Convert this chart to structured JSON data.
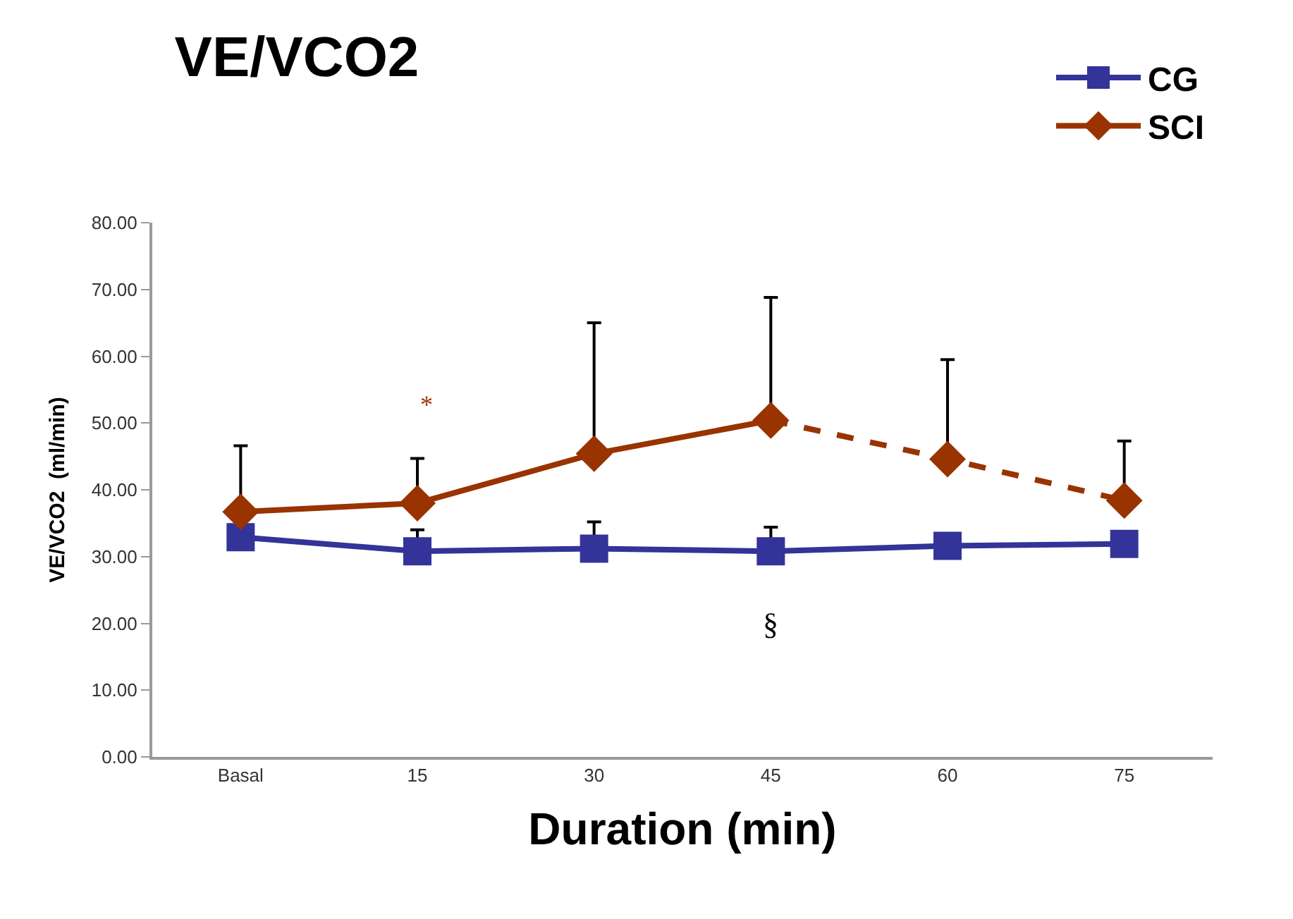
{
  "chart_data": {
    "type": "line",
    "title": "VE/VCO2",
    "xlabel": "Duration (min)",
    "ylabel": "VE/VCO2  (ml/min)",
    "categories": [
      "Basal",
      "15",
      "30",
      "45",
      "60",
      "75"
    ],
    "series": [
      {
        "name": "CG",
        "color": "#333399",
        "marker": "square",
        "line_style": "solid",
        "values": [
          32.9,
          30.8,
          31.2,
          30.8,
          31.6,
          31.9
        ],
        "errors": [
          null,
          [
            30.8,
            34.0
          ],
          [
            31.2,
            35.2
          ],
          [
            30.8,
            34.4
          ],
          null,
          null
        ]
      },
      {
        "name": "SCI",
        "color": "#993300",
        "marker": "diamond",
        "line_style": "solid",
        "values": [
          36.7,
          38.0,
          45.4,
          50.4,
          null,
          null
        ],
        "errors": [
          [
            36.7,
            46.6
          ],
          [
            38.0,
            44.7
          ],
          [
            45.4,
            65.0
          ],
          [
            50.4,
            68.8
          ],
          null,
          null
        ]
      },
      {
        "color": "#993300",
        "marker": "diamond",
        "line_style": "dashed",
        "values": [
          null,
          null,
          null,
          50.4,
          44.6,
          38.4
        ],
        "errors": [
          null,
          null,
          null,
          null,
          [
            44.6,
            59.5
          ],
          [
            38.4,
            47.3
          ]
        ]
      }
    ],
    "annotations": [
      "*",
      "§"
    ],
    "ylim": [
      0,
      80
    ],
    "yticks": [
      {
        "value": 0,
        "label": "0.00"
      },
      {
        "value": 10,
        "label": "10.00"
      },
      {
        "value": 20,
        "label": "20.00"
      },
      {
        "value": 30,
        "label": "30.00"
      },
      {
        "value": 40,
        "label": "40.00"
      },
      {
        "value": 50,
        "label": "50.00"
      },
      {
        "value": 60,
        "label": "60.00"
      },
      {
        "value": 70,
        "label": "70.00"
      },
      {
        "value": 80,
        "label": "80.00"
      }
    ],
    "legend": "top right"
  }
}
